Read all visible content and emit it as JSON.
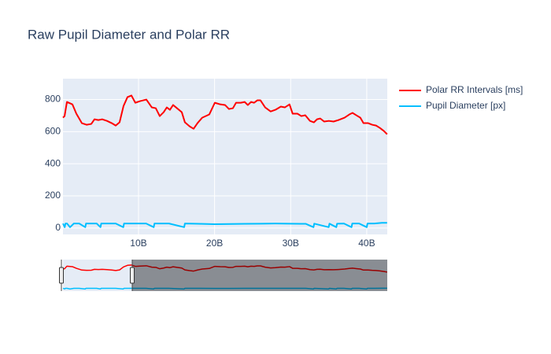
{
  "chart_data": {
    "type": "line",
    "title": "Raw Pupil Diameter and Polar RR",
    "xlim": [
      70000000.0,
      42700000000.0
    ],
    "ylim": [
      -40,
      930
    ],
    "xticks": [
      {
        "value": 10000000000.0,
        "label": "10B"
      },
      {
        "value": 20000000000.0,
        "label": "20B"
      },
      {
        "value": 30000000000.0,
        "label": "30B"
      },
      {
        "value": 40000000000.0,
        "label": "40B"
      }
    ],
    "yticks": [
      0,
      200,
      400,
      600,
      800
    ],
    "grid": true,
    "legend": "right",
    "series": [
      {
        "name": "Polar RR Intervals [ms]",
        "color": "#ff0000",
        "x": [
          70000000.0,
          280000000.0,
          590000000.0,
          1310000000.0,
          1830000000.0,
          2550000000.0,
          3170000000.0,
          3790000000.0,
          4210000000.0,
          4720000000.0,
          5240000000.0,
          5860000000.0,
          6480000000.0,
          7000000000.0,
          7510000000.0,
          8030000000.0,
          8550000000.0,
          9070000000.0,
          9580000000.0,
          10200000000.0,
          11030000000.0,
          11750000000.0,
          12270000000.0,
          12790000000.0,
          13300000000.0,
          13720000000.0,
          14130000000.0,
          14550000000.0,
          15060000000.0,
          15690000000.0,
          16100000000.0,
          16720000000.0,
          17240000000.0,
          17750000000.0,
          18370000000.0,
          19300000000.0,
          20030000000.0,
          20750000000.0,
          21370000000.0,
          21890000000.0,
          22410000000.0,
          22820000000.0,
          23440000000.0,
          23960000000.0,
          24370000000.0,
          24790000000.0,
          25200000000.0,
          25610000000.0,
          26030000000.0,
          26650000000.0,
          27370000000.0,
          27990000000.0,
          28710000000.0,
          29230000000.0,
          29850000000.0,
          30260000000.0,
          30890000000.0,
          31400000000.0,
          31920000000.0,
          32540000000.0,
          33060000000.0,
          33470000000.0,
          33890000000.0,
          34400000000.0,
          35020000000.0,
          35640000000.0,
          36260000000.0,
          37090000000.0,
          37710000000.0,
          38130000000.0,
          38640000000.0,
          39160000000.0,
          39570000000.0,
          40190000000.0,
          40710000000.0,
          41230000000.0,
          41740000000.0,
          42260000000.0,
          42680000000.0
        ],
        "values": [
          687,
          697,
          785,
          770,
          712,
          653,
          643,
          648,
          677,
          672,
          677,
          667,
          653,
          638,
          658,
          760,
          815,
          825,
          780,
          790,
          800,
          751,
          746,
          697,
          721,
          751,
          736,
          766,
          746,
          721,
          658,
          633,
          618,
          653,
          687,
          707,
          780,
          770,
          766,
          741,
          746,
          780,
          780,
          785,
          766,
          785,
          780,
          795,
          795,
          751,
          726,
          736,
          756,
          751,
          770,
          712,
          712,
          697,
          702,
          667,
          658,
          677,
          682,
          663,
          667,
          663,
          672,
          687,
          707,
          717,
          702,
          687,
          653,
          653,
          643,
          638,
          623,
          604,
          584
        ]
      },
      {
        "name": "Pupil Diameter [px]",
        "color": "#00bfff",
        "x": [
          70000000.0,
          300000000.0,
          400000000.0,
          600000000.0,
          1000000000.0,
          1500000000.0,
          1600000000.0,
          2200000000.0,
          3000000000.0,
          3100000000.0,
          3600000000.0,
          4500000000.0,
          5000000000.0,
          5100000000.0,
          6000000000.0,
          7000000000.0,
          8000000000.0,
          8100000000.0,
          9000000000.0,
          10000000000.0,
          11000000000.0,
          12000000000.0,
          12100000000.0,
          14000000000.0,
          16000000000.0,
          16100000000.0,
          18000000000.0,
          20000000000.0,
          22000000000.0,
          24000000000.0,
          26000000000.0,
          28000000000.0,
          30000000000.0,
          32000000000.0,
          33000000000.0,
          33100000000.0,
          35000000000.0,
          35100000000.0,
          36000000000.0,
          36100000000.0,
          37000000000.0,
          38000000000.0,
          38100000000.0,
          39000000000.0,
          40000000000.0,
          40100000000.0,
          41000000000.0,
          42000000000.0,
          42680000000.0
        ],
        "values": [
          28,
          5,
          28,
          28,
          5,
          28,
          28,
          28,
          5,
          28,
          28,
          28,
          5,
          28,
          28,
          28,
          5,
          28,
          28,
          28,
          28,
          5,
          28,
          28,
          5,
          28,
          26,
          24,
          25,
          26,
          27,
          28,
          27,
          26,
          5,
          27,
          5,
          27,
          5,
          27,
          28,
          5,
          28,
          28,
          5,
          28,
          28,
          32,
          32
        ]
      }
    ]
  }
}
